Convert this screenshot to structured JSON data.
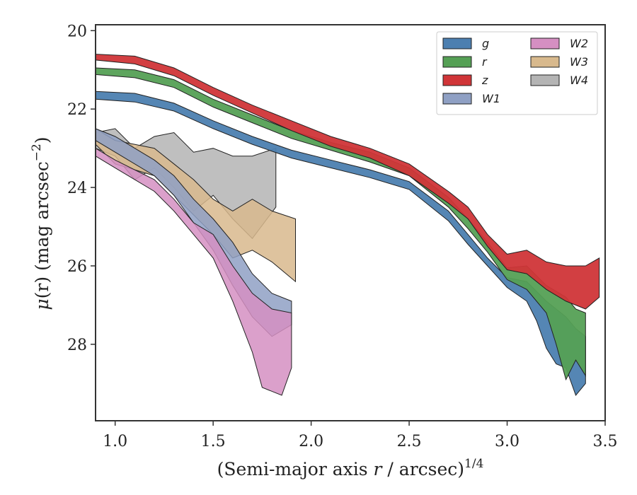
{
  "chart_data": {
    "type": "area",
    "xlabel_main": "(Semi-major axis ",
    "xlabel_var": "r",
    "xlabel_tail": " / arcsec)",
    "xlabel_sup": "1/4",
    "ylabel_mu": "μ",
    "ylabel_mid": "(r) (mag arcsec",
    "ylabel_sup": "−2",
    "ylabel_close": ")",
    "xlim": [
      0.9,
      3.5
    ],
    "ylim": [
      29.95,
      19.85
    ],
    "xticks": [
      1.0,
      1.5,
      2.0,
      2.5,
      3.0,
      3.5
    ],
    "xtick_labels": [
      "1.0",
      "1.5",
      "2.0",
      "2.5",
      "3.0",
      "3.5"
    ],
    "yticks": [
      20,
      22,
      24,
      26,
      28
    ],
    "ytick_labels": [
      "20",
      "22",
      "24",
      "26",
      "28"
    ],
    "legend_position": "top-right",
    "legend_columns": 2,
    "series": [
      {
        "name": "g",
        "color": "#4c7fb0",
        "upper": [
          [
            0.9,
            21.55
          ],
          [
            1.1,
            21.6
          ],
          [
            1.3,
            21.85
          ],
          [
            1.5,
            22.3
          ],
          [
            1.7,
            22.7
          ],
          [
            1.9,
            23.05
          ],
          [
            2.1,
            23.3
          ],
          [
            2.3,
            23.55
          ],
          [
            2.5,
            23.85
          ],
          [
            2.7,
            24.6
          ],
          [
            2.8,
            25.2
          ],
          [
            2.9,
            25.8
          ],
          [
            3.0,
            26.3
          ],
          [
            3.1,
            26.4
          ],
          [
            3.2,
            26.9
          ],
          [
            3.3,
            27.3
          ],
          [
            3.35,
            27.6
          ],
          [
            3.4,
            27.8
          ]
        ],
        "lower": [
          [
            0.9,
            21.75
          ],
          [
            1.1,
            21.82
          ],
          [
            1.3,
            22.05
          ],
          [
            1.5,
            22.5
          ],
          [
            1.7,
            22.9
          ],
          [
            1.9,
            23.25
          ],
          [
            2.1,
            23.5
          ],
          [
            2.3,
            23.75
          ],
          [
            2.5,
            24.05
          ],
          [
            2.7,
            24.85
          ],
          [
            2.8,
            25.45
          ],
          [
            2.9,
            26.0
          ],
          [
            3.0,
            26.55
          ],
          [
            3.1,
            26.9
          ],
          [
            3.15,
            27.4
          ],
          [
            3.2,
            28.1
          ],
          [
            3.25,
            28.5
          ],
          [
            3.3,
            28.6
          ],
          [
            3.35,
            29.3
          ],
          [
            3.4,
            29.0
          ]
        ]
      },
      {
        "name": "r",
        "color": "#55a055",
        "upper": [
          [
            0.9,
            20.95
          ],
          [
            1.1,
            21.0
          ],
          [
            1.3,
            21.25
          ],
          [
            1.5,
            21.75
          ],
          [
            1.7,
            22.15
          ],
          [
            1.9,
            22.55
          ],
          [
            2.1,
            22.85
          ],
          [
            2.3,
            23.1
          ],
          [
            2.5,
            23.5
          ],
          [
            2.7,
            24.25
          ],
          [
            2.8,
            24.8
          ],
          [
            2.9,
            25.4
          ],
          [
            3.0,
            26.05
          ],
          [
            3.1,
            26.0
          ],
          [
            3.2,
            26.5
          ],
          [
            3.3,
            26.8
          ],
          [
            3.35,
            27.1
          ],
          [
            3.4,
            27.2
          ]
        ],
        "lower": [
          [
            0.9,
            21.12
          ],
          [
            1.1,
            21.2
          ],
          [
            1.3,
            21.45
          ],
          [
            1.5,
            21.95
          ],
          [
            1.7,
            22.35
          ],
          [
            1.9,
            22.75
          ],
          [
            2.1,
            23.05
          ],
          [
            2.3,
            23.35
          ],
          [
            2.5,
            23.7
          ],
          [
            2.7,
            24.5
          ],
          [
            2.8,
            25.05
          ],
          [
            2.9,
            25.65
          ],
          [
            3.0,
            26.35
          ],
          [
            3.1,
            26.6
          ],
          [
            3.2,
            27.2
          ],
          [
            3.25,
            28.0
          ],
          [
            3.3,
            28.9
          ],
          [
            3.35,
            28.4
          ],
          [
            3.4,
            28.8
          ]
        ]
      },
      {
        "name": "z",
        "color": "#d03538",
        "upper": [
          [
            0.9,
            20.6
          ],
          [
            1.1,
            20.65
          ],
          [
            1.3,
            20.95
          ],
          [
            1.5,
            21.45
          ],
          [
            1.7,
            21.9
          ],
          [
            1.9,
            22.3
          ],
          [
            2.1,
            22.7
          ],
          [
            2.3,
            23.0
          ],
          [
            2.5,
            23.4
          ],
          [
            2.7,
            24.1
          ],
          [
            2.8,
            24.5
          ],
          [
            2.9,
            25.2
          ],
          [
            3.0,
            25.7
          ],
          [
            3.1,
            25.6
          ],
          [
            3.2,
            25.9
          ],
          [
            3.3,
            26.0
          ],
          [
            3.4,
            26.0
          ],
          [
            3.47,
            25.8
          ]
        ],
        "lower": [
          [
            0.9,
            20.75
          ],
          [
            1.1,
            20.85
          ],
          [
            1.3,
            21.15
          ],
          [
            1.5,
            21.65
          ],
          [
            1.7,
            22.1
          ],
          [
            1.9,
            22.55
          ],
          [
            2.1,
            22.95
          ],
          [
            2.3,
            23.25
          ],
          [
            2.5,
            23.7
          ],
          [
            2.7,
            24.4
          ],
          [
            2.8,
            24.8
          ],
          [
            2.9,
            25.5
          ],
          [
            3.0,
            26.1
          ],
          [
            3.1,
            26.2
          ],
          [
            3.2,
            26.6
          ],
          [
            3.3,
            26.9
          ],
          [
            3.4,
            27.1
          ],
          [
            3.47,
            26.8
          ]
        ]
      },
      {
        "name": "W1",
        "color": "#8fa0c4",
        "upper": [
          [
            0.9,
            22.5
          ],
          [
            1.0,
            22.7
          ],
          [
            1.2,
            23.3
          ],
          [
            1.3,
            23.7
          ],
          [
            1.4,
            24.3
          ],
          [
            1.5,
            24.8
          ],
          [
            1.6,
            25.4
          ],
          [
            1.7,
            26.2
          ],
          [
            1.8,
            26.7
          ],
          [
            1.9,
            26.9
          ]
        ],
        "lower": [
          [
            0.9,
            22.8
          ],
          [
            1.0,
            23.1
          ],
          [
            1.2,
            23.7
          ],
          [
            1.3,
            24.2
          ],
          [
            1.4,
            24.9
          ],
          [
            1.5,
            25.6
          ],
          [
            1.6,
            26.5
          ],
          [
            1.7,
            27.3
          ],
          [
            1.8,
            27.8
          ],
          [
            1.9,
            27.5
          ]
        ]
      },
      {
        "name": "W2",
        "color": "#d58fc2",
        "upper": [
          [
            0.9,
            23.0
          ],
          [
            1.0,
            23.3
          ],
          [
            1.2,
            23.8
          ],
          [
            1.3,
            24.3
          ],
          [
            1.4,
            24.9
          ],
          [
            1.5,
            25.2
          ],
          [
            1.6,
            26.0
          ],
          [
            1.7,
            26.7
          ],
          [
            1.8,
            27.1
          ],
          [
            1.9,
            27.2
          ]
        ],
        "lower": [
          [
            0.9,
            23.2
          ],
          [
            1.0,
            23.5
          ],
          [
            1.2,
            24.1
          ],
          [
            1.3,
            24.6
          ],
          [
            1.4,
            25.2
          ],
          [
            1.5,
            25.8
          ],
          [
            1.6,
            26.9
          ],
          [
            1.7,
            28.2
          ],
          [
            1.75,
            29.1
          ],
          [
            1.85,
            29.3
          ],
          [
            1.9,
            28.6
          ]
        ]
      },
      {
        "name": "W3",
        "color": "#d8b98d",
        "upper": [
          [
            0.9,
            22.5
          ],
          [
            1.0,
            22.8
          ],
          [
            1.2,
            23.0
          ],
          [
            1.3,
            23.4
          ],
          [
            1.4,
            23.8
          ],
          [
            1.5,
            24.3
          ],
          [
            1.6,
            24.6
          ],
          [
            1.7,
            24.3
          ],
          [
            1.8,
            24.6
          ],
          [
            1.92,
            24.8
          ]
        ],
        "lower": [
          [
            0.9,
            22.9
          ],
          [
            1.0,
            23.4
          ],
          [
            1.2,
            23.7
          ],
          [
            1.3,
            24.2
          ],
          [
            1.4,
            24.7
          ],
          [
            1.5,
            25.2
          ],
          [
            1.6,
            25.8
          ],
          [
            1.7,
            25.6
          ],
          [
            1.8,
            25.9
          ],
          [
            1.92,
            26.4
          ]
        ]
      },
      {
        "name": "W4",
        "color": "#b4b4b4",
        "upper": [
          [
            0.9,
            22.6
          ],
          [
            1.0,
            22.5
          ],
          [
            1.1,
            23.0
          ],
          [
            1.2,
            22.7
          ],
          [
            1.3,
            22.6
          ],
          [
            1.4,
            23.1
          ],
          [
            1.5,
            23.0
          ],
          [
            1.6,
            23.2
          ],
          [
            1.7,
            23.2
          ],
          [
            1.82,
            23.0
          ]
        ],
        "lower": [
          [
            0.9,
            23.0
          ],
          [
            1.0,
            23.2
          ],
          [
            1.1,
            23.8
          ],
          [
            1.2,
            23.5
          ],
          [
            1.3,
            24.0
          ],
          [
            1.4,
            24.6
          ],
          [
            1.5,
            24.2
          ],
          [
            1.6,
            24.8
          ],
          [
            1.7,
            25.3
          ],
          [
            1.82,
            24.5
          ]
        ]
      }
    ]
  }
}
